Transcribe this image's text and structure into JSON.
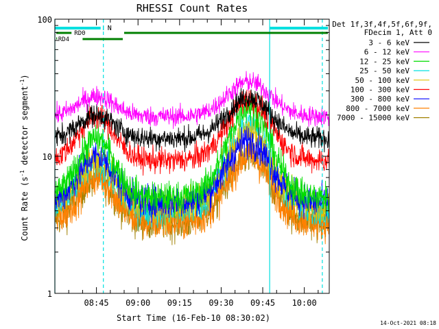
{
  "chart_data": {
    "type": "line",
    "title": "RHESSI Count Rates",
    "xlabel": "Start Time (16-Feb-10 08:30:02)",
    "ylabel": "Count Rate (s⁻¹ detector segment⁻¹)",
    "ylabel_main": "Count Rate (s",
    "ylabel_sup1": "-1",
    "ylabel_mid": " detector segment",
    "ylabel_sup2": "-1",
    "ylabel_end": ")",
    "y_scale": "log",
    "ylim": [
      1,
      100
    ],
    "xlim_minutes": [
      0,
      99
    ],
    "x_start": "08:30:02",
    "x_tick_labels": [
      {
        "label": "08:45",
        "t": 15
      },
      {
        "label": "09:00",
        "t": 30
      },
      {
        "label": "09:15",
        "t": 45
      },
      {
        "label": "09:30",
        "t": 60
      },
      {
        "label": "09:45",
        "t": 75
      },
      {
        "label": "10:00",
        "t": 90
      }
    ],
    "y_tick_labels": [
      {
        "label": "1",
        "value": 1
      },
      {
        "label": "10",
        "value": 10
      },
      {
        "label": "100",
        "value": 100
      }
    ],
    "legend_header_1": "Det 1f,3f,4f,5f,6f,9f,",
    "legend_header_2": "FDecim 1, Att 0",
    "legend_position": "right",
    "series": [
      {
        "name": "3 - 6 keV",
        "color": "#000000",
        "base": 13.5,
        "peak1": 20,
        "peak2": 27
      },
      {
        "name": "6 - 12 keV",
        "color": "#ff00ff",
        "base": 19.5,
        "peak1": 27.5,
        "peak2": 35
      },
      {
        "name": "12 - 25 keV",
        "color": "#00dd00",
        "base": 5.0,
        "peak1": 13.5,
        "peak2": 23
      },
      {
        "name": "25 - 50 keV",
        "color": "#00e0e0",
        "base": 4.0,
        "peak1": 9.0,
        "peak2": 17
      },
      {
        "name": "50 - 100 keV",
        "color": "#e0c000",
        "base": 4.3,
        "peak1": 9.5,
        "peak2": 15
      },
      {
        "name": "100 - 300 keV",
        "color": "#ff0000",
        "base": 9.3,
        "peak1": 19.5,
        "peak2": 26
      },
      {
        "name": "300 - 800 keV",
        "color": "#0000ff",
        "base": 4.6,
        "peak1": 10,
        "peak2": 13
      },
      {
        "name": "800 - 7000 keV",
        "color": "#ff8000",
        "base": 3.3,
        "peak1": 7,
        "peak2": 10
      },
      {
        "name": "7000 - 15000 keV",
        "color": "#a08000",
        "base": 3.3,
        "peak1": 7,
        "peak2": 10
      }
    ],
    "peak1_time_minutes": 15,
    "peak2_time_minutes": 70,
    "vertical_lines": [
      {
        "t": 0,
        "style": "solid",
        "color": "#00e0e0"
      },
      {
        "t": 17.5,
        "style": "dashed",
        "color": "#00e0e0"
      },
      {
        "t": 77.5,
        "style": "solid",
        "color": "#00e0e0"
      },
      {
        "t": 96.5,
        "style": "dashed",
        "color": "#00e0e0"
      }
    ],
    "state_bars": {
      "N_label": "N",
      "RD0_label": "RD0",
      "RD4_label": "RD4",
      "N_color": "#00e0e0",
      "RD_color": "#008000"
    }
  },
  "footer_timestamp": "14-Oct-2021 08:18"
}
